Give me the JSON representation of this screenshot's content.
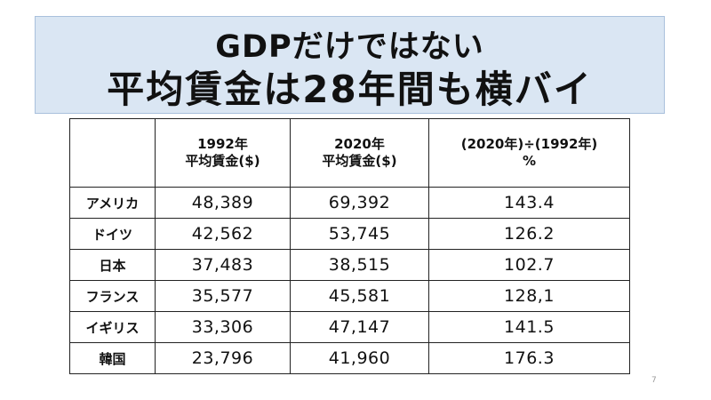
{
  "title": {
    "line1": "GDPだけではない",
    "line2": "平均賃金は28年間も横バイ"
  },
  "table": {
    "headers": [
      {
        "line1": "",
        "line2": ""
      },
      {
        "line1": "1992年",
        "line2": "平均賃金($)"
      },
      {
        "line1": "2020年",
        "line2": "平均賃金($)"
      },
      {
        "line1": "(2020年)÷(1992年)",
        "line2": "%"
      }
    ],
    "rows": [
      {
        "country": "アメリカ",
        "wage_1992": "48,389",
        "wage_2020": "69,392",
        "ratio": "143.4"
      },
      {
        "country": "ドイツ",
        "wage_1992": "42,562",
        "wage_2020": "53,745",
        "ratio": "126.2"
      },
      {
        "country": "日本",
        "wage_1992": "37,483",
        "wage_2020": "38,515",
        "ratio": "102.7"
      },
      {
        "country": "フランス",
        "wage_1992": "35,577",
        "wage_2020": "45,581",
        "ratio": "128,1"
      },
      {
        "country": "イギリス",
        "wage_1992": "33,306",
        "wage_2020": "47,147",
        "ratio": "141.5"
      },
      {
        "country": "韓国",
        "wage_1992": "23,796",
        "wage_2020": "41,960",
        "ratio": "176.3"
      }
    ]
  },
  "page_number": "7"
}
